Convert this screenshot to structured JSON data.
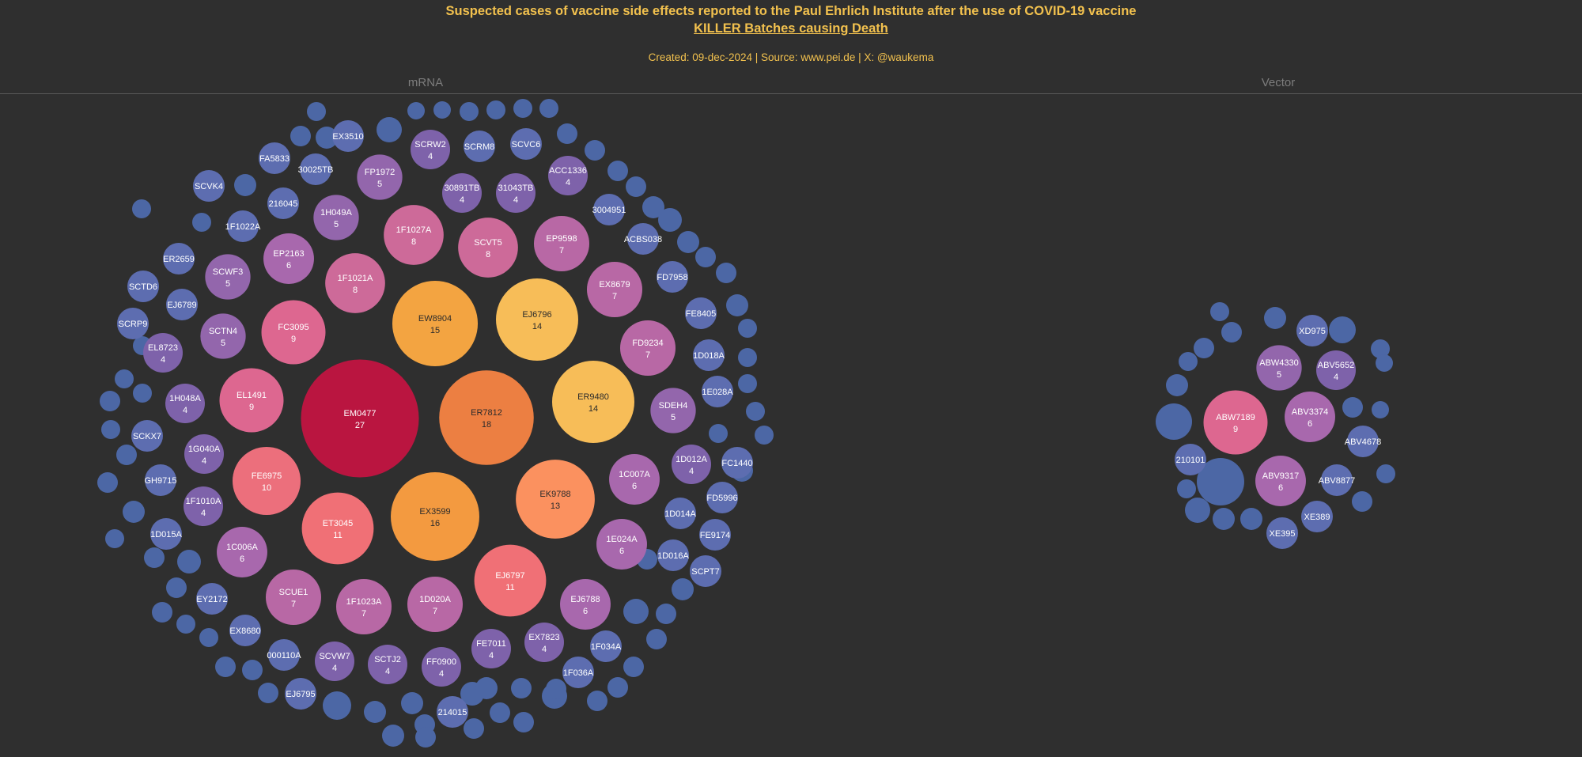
{
  "header": {
    "title_line1": "Suspected cases of vaccine side effects reported to the Paul Ehrlich Institute after the use of COVID-19 vaccine",
    "title_line2": "KILLER Batches causing Death",
    "subtitle": "Created: 09-dec-2024 | Source: www.pei.de | X: @waukema"
  },
  "columns": {
    "mrna": "mRNA",
    "vector": "Vector"
  },
  "colors": {
    "background": "#2f2f2f",
    "title": "#f2c14e",
    "scale_low": "#4a5e9b",
    "scale_high": "#ba1540"
  },
  "chart_data": [
    {
      "type": "bubble",
      "group": "mRNA",
      "labels_shown": [
        {
          "batch": "EM0477",
          "deaths": 27
        },
        {
          "batch": "ER7812",
          "deaths": 18
        },
        {
          "batch": "EX3599",
          "deaths": 16
        },
        {
          "batch": "EW8904",
          "deaths": 15
        },
        {
          "batch": "EJ6796",
          "deaths": 14
        },
        {
          "batch": "ER9480",
          "deaths": 14
        },
        {
          "batch": "EK9788",
          "deaths": 13
        },
        {
          "batch": "ET3045",
          "deaths": 11
        },
        {
          "batch": "EJ6797",
          "deaths": 11
        },
        {
          "batch": "FE6975",
          "deaths": 10
        },
        {
          "batch": "FC3095",
          "deaths": 9
        },
        {
          "batch": "EL1491",
          "deaths": 9
        },
        {
          "batch": "1F1027A",
          "deaths": 8
        },
        {
          "batch": "SCVT5",
          "deaths": 8
        },
        {
          "batch": "1F1021A",
          "deaths": 8
        },
        {
          "batch": "EP9598",
          "deaths": 7
        },
        {
          "batch": "EX8679",
          "deaths": 7
        },
        {
          "batch": "FD9234",
          "deaths": 7
        },
        {
          "batch": "SCUE1",
          "deaths": 7
        },
        {
          "batch": "1F1023A",
          "deaths": 7
        },
        {
          "batch": "1D020A",
          "deaths": 7
        },
        {
          "batch": "EP2163",
          "deaths": 6
        },
        {
          "batch": "1C006A",
          "deaths": 6
        },
        {
          "batch": "1C007A",
          "deaths": 6
        },
        {
          "batch": "1E024A",
          "deaths": 6
        },
        {
          "batch": "EJ6788",
          "deaths": 6
        },
        {
          "batch": "FP1972",
          "deaths": 5
        },
        {
          "batch": "1H049A",
          "deaths": 5
        },
        {
          "batch": "SCWF3",
          "deaths": 5
        },
        {
          "batch": "SCTN4",
          "deaths": 5
        },
        {
          "batch": "SDEH4",
          "deaths": 5
        },
        {
          "batch": "SCRW2",
          "deaths": 4
        },
        {
          "batch": "30891TB",
          "deaths": 4
        },
        {
          "batch": "31043TB",
          "deaths": 4
        },
        {
          "batch": "ACC1336",
          "deaths": 4
        },
        {
          "batch": "EL8723",
          "deaths": 4
        },
        {
          "batch": "1H048A",
          "deaths": 4
        },
        {
          "batch": "1G040A",
          "deaths": 4
        },
        {
          "batch": "1F1010A",
          "deaths": 4
        },
        {
          "batch": "1D012A",
          "deaths": 4
        },
        {
          "batch": "SCVW7",
          "deaths": 4
        },
        {
          "batch": "SCTJ2",
          "deaths": 4
        },
        {
          "batch": "FF0900",
          "deaths": 4
        },
        {
          "batch": "FE7011",
          "deaths": 4
        },
        {
          "batch": "EX7823",
          "deaths": 4
        },
        {
          "batch": "EX3510",
          "deaths": null
        },
        {
          "batch": "SCRM8",
          "deaths": null
        },
        {
          "batch": "SCVC6",
          "deaths": null
        },
        {
          "batch": "FA5833",
          "deaths": null
        },
        {
          "batch": "30025TB",
          "deaths": null
        },
        {
          "batch": "SCVK4",
          "deaths": null
        },
        {
          "batch": "216045",
          "deaths": null
        },
        {
          "batch": "1F1022A",
          "deaths": null
        },
        {
          "batch": "3004951",
          "deaths": null
        },
        {
          "batch": "ACBS038",
          "deaths": null
        },
        {
          "batch": "ER2659",
          "deaths": null
        },
        {
          "batch": "FD7958",
          "deaths": null
        },
        {
          "batch": "SCTD6",
          "deaths": null
        },
        {
          "batch": "EJ6789",
          "deaths": null
        },
        {
          "batch": "FE8405",
          "deaths": null
        },
        {
          "batch": "SCRP9",
          "deaths": null
        },
        {
          "batch": "1D018A",
          "deaths": null
        },
        {
          "batch": "1E028A",
          "deaths": null
        },
        {
          "batch": "SCKX7",
          "deaths": null
        },
        {
          "batch": "FC1440",
          "deaths": null
        },
        {
          "batch": "GH9715",
          "deaths": null
        },
        {
          "batch": "FD5996",
          "deaths": null
        },
        {
          "batch": "1D014A",
          "deaths": null
        },
        {
          "batch": "1D015A",
          "deaths": null
        },
        {
          "batch": "FE9174",
          "deaths": null
        },
        {
          "batch": "1D016A",
          "deaths": null
        },
        {
          "batch": "SCPT7",
          "deaths": null
        },
        {
          "batch": "EY2172",
          "deaths": null
        },
        {
          "batch": "EX8680",
          "deaths": null
        },
        {
          "batch": "1F034A",
          "deaths": null
        },
        {
          "batch": "000110A",
          "deaths": null
        },
        {
          "batch": "1F036A",
          "deaths": null
        },
        {
          "batch": "EJ6795",
          "deaths": null
        },
        {
          "batch": "214015",
          "deaths": null
        }
      ]
    },
    {
      "type": "bubble",
      "group": "Vector",
      "labels_shown": [
        {
          "batch": "ABW7189",
          "deaths": 9
        },
        {
          "batch": "ABV3374",
          "deaths": 6
        },
        {
          "batch": "ABV9317",
          "deaths": 6
        },
        {
          "batch": "ABW4330",
          "deaths": 5
        },
        {
          "batch": "ABV5652",
          "deaths": 4
        },
        {
          "batch": "XD975",
          "deaths": null
        },
        {
          "batch": "ABV4678",
          "deaths": null
        },
        {
          "batch": "210101",
          "deaths": null
        },
        {
          "batch": "ABV8877",
          "deaths": null
        },
        {
          "batch": "XE389",
          "deaths": null
        },
        {
          "batch": "XE395",
          "deaths": null
        }
      ]
    }
  ]
}
